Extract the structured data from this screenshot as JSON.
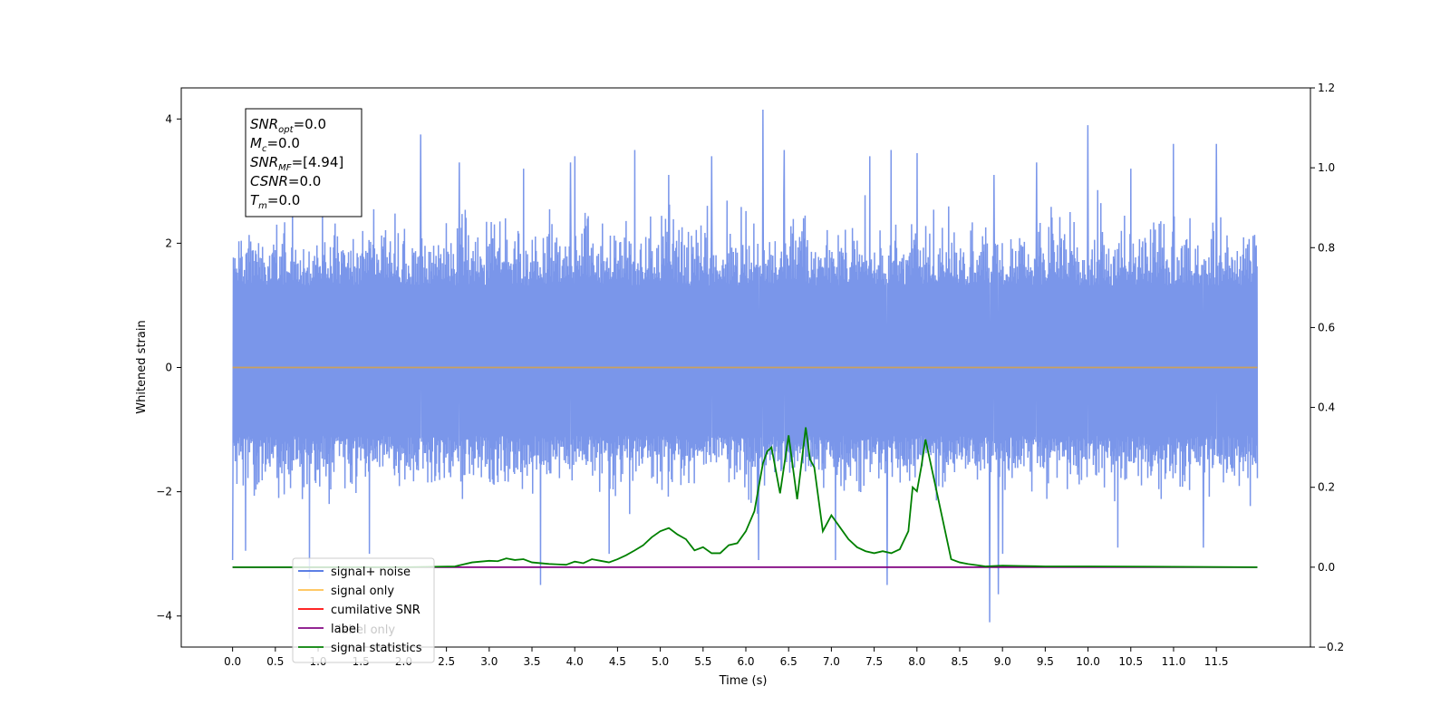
{
  "chart_data": {
    "type": "line",
    "xlabel": "Time (s)",
    "ylabel": "Whitened strain",
    "xlim": [
      -0.6,
      12.6
    ],
    "ylim": [
      -4.5,
      4.5
    ],
    "y2lim": [
      -0.2,
      1.2
    ],
    "x_ticks": [
      0.0,
      0.5,
      1.0,
      1.5,
      2.0,
      2.5,
      3.0,
      3.5,
      4.0,
      4.5,
      5.0,
      5.5,
      6.0,
      6.5,
      7.0,
      7.5,
      8.0,
      8.5,
      9.0,
      9.5,
      10.0,
      10.5,
      11.0,
      11.5
    ],
    "x_tick_labels": [
      "0.0",
      "0.5",
      "1.0",
      "1.5",
      "2.0",
      "2.5",
      "3.0",
      "3.5",
      "4.0",
      "4.5",
      "5.0",
      "5.5",
      "6.0",
      "6.5",
      "7.0",
      "7.5",
      "8.0",
      "8.5",
      "9.0",
      "9.5",
      "10.0",
      "10.5",
      "11.0",
      "11.5"
    ],
    "y_ticks": [
      -4,
      -2,
      0,
      2,
      4
    ],
    "y_tick_labels": [
      "−4",
      "−2",
      "0",
      "2",
      "4"
    ],
    "y2_ticks": [
      -0.2,
      0.0,
      0.2,
      0.4,
      0.6,
      0.8,
      1.0,
      1.2
    ],
    "y2_tick_labels": [
      "−0.2",
      "0.0",
      "0.2",
      "0.4",
      "0.6",
      "0.8",
      "1.0",
      "1.2"
    ],
    "grid": false,
    "legend_position": "lower-left",
    "noise": {
      "t_start": 0.0,
      "t_end": 11.98,
      "n_points": 2600,
      "band_low": -2.0,
      "band_high": 2.4,
      "peaks": [
        [
          0.0,
          2.4
        ],
        [
          1.05,
          2.5
        ],
        [
          2.2,
          3.75
        ],
        [
          2.65,
          3.3
        ],
        [
          3.4,
          3.2
        ],
        [
          3.95,
          3.3
        ],
        [
          4.0,
          3.4
        ],
        [
          4.7,
          3.5
        ],
        [
          5.1,
          3.1
        ],
        [
          5.6,
          3.4
        ],
        [
          6.2,
          4.15
        ],
        [
          6.45,
          3.5
        ],
        [
          7.45,
          3.4
        ],
        [
          7.7,
          3.5
        ],
        [
          8.0,
          3.45
        ],
        [
          8.9,
          3.1
        ],
        [
          9.4,
          3.3
        ],
        [
          10.0,
          3.9
        ],
        [
          10.5,
          3.2
        ],
        [
          11.0,
          3.6
        ],
        [
          11.5,
          3.6
        ]
      ],
      "troughs": [
        [
          0.0,
          -3.1
        ],
        [
          0.15,
          -2.95
        ],
        [
          0.9,
          -3.4
        ],
        [
          1.6,
          -3.0
        ],
        [
          3.6,
          -3.5
        ],
        [
          4.4,
          -3.0
        ],
        [
          6.15,
          -3.1
        ],
        [
          7.05,
          -3.1
        ],
        [
          7.65,
          -3.5
        ],
        [
          8.85,
          -4.1
        ],
        [
          8.95,
          -3.65
        ],
        [
          9.0,
          -3.0
        ],
        [
          10.35,
          -2.9
        ],
        [
          11.35,
          -2.9
        ]
      ]
    },
    "series": [
      {
        "name": "signal+ noise",
        "color": "#4169e1",
        "axis": "left",
        "style": "noise"
      },
      {
        "name": "signal only",
        "color": "#ffa500",
        "axis": "left",
        "x": [
          0.0,
          11.98
        ],
        "y": [
          0.0,
          0.0
        ]
      },
      {
        "name": "cumilative SNR",
        "color": "#ff0000",
        "axis": "right",
        "x": [],
        "y": []
      },
      {
        "name": "label",
        "color": "#800080",
        "axis": "right",
        "x": [
          0.0,
          11.98
        ],
        "y": [
          0.0,
          0.0
        ]
      },
      {
        "name": "signal statistics",
        "color": "#008000",
        "axis": "right",
        "x": [
          0.0,
          1.0,
          2.0,
          2.6,
          2.8,
          3.0,
          3.1,
          3.2,
          3.3,
          3.4,
          3.5,
          3.6,
          3.7,
          3.8,
          3.9,
          4.0,
          4.1,
          4.2,
          4.3,
          4.4,
          4.5,
          4.6,
          4.7,
          4.8,
          4.9,
          5.0,
          5.1,
          5.2,
          5.3,
          5.4,
          5.5,
          5.6,
          5.7,
          5.8,
          5.9,
          6.0,
          6.1,
          6.2,
          6.25,
          6.3,
          6.4,
          6.5,
          6.6,
          6.7,
          6.75,
          6.8,
          6.9,
          7.0,
          7.1,
          7.2,
          7.3,
          7.4,
          7.5,
          7.6,
          7.7,
          7.8,
          7.9,
          7.95,
          8.0,
          8.05,
          8.1,
          8.2,
          8.3,
          8.4,
          8.5,
          8.6,
          8.7,
          8.8,
          9.0,
          9.2,
          9.5,
          10.0,
          11.0,
          11.98
        ],
        "y": [
          0.0,
          0.0,
          0.0,
          0.002,
          0.012,
          0.016,
          0.015,
          0.022,
          0.018,
          0.02,
          0.012,
          0.01,
          0.008,
          0.007,
          0.006,
          0.014,
          0.01,
          0.02,
          0.016,
          0.012,
          0.02,
          0.03,
          0.042,
          0.055,
          0.075,
          0.09,
          0.098,
          0.082,
          0.07,
          0.042,
          0.05,
          0.035,
          0.035,
          0.055,
          0.06,
          0.09,
          0.14,
          0.26,
          0.29,
          0.3,
          0.185,
          0.33,
          0.17,
          0.35,
          0.27,
          0.25,
          0.09,
          0.13,
          0.1,
          0.07,
          0.05,
          0.04,
          0.035,
          0.04,
          0.035,
          0.045,
          0.09,
          0.2,
          0.19,
          0.25,
          0.32,
          0.22,
          0.12,
          0.02,
          0.012,
          0.008,
          0.005,
          0.002,
          0.004,
          0.003,
          0.002,
          0.002,
          0.001,
          0.0
        ]
      }
    ],
    "annotation": {
      "lines": [
        {
          "base": "SNR",
          "sub": "opt",
          "rest": "=0.0"
        },
        {
          "base": "M",
          "sub": "c",
          "rest": "=0.0"
        },
        {
          "base": "SNR",
          "sub": "MF",
          "rest": "=[4.94]"
        },
        {
          "base": "CSNR",
          "sub": "",
          "rest": "=0.0"
        },
        {
          "base": "T",
          "sub": "m",
          "rest": "=0.0"
        }
      ]
    },
    "overlapped_text": "label only"
  }
}
